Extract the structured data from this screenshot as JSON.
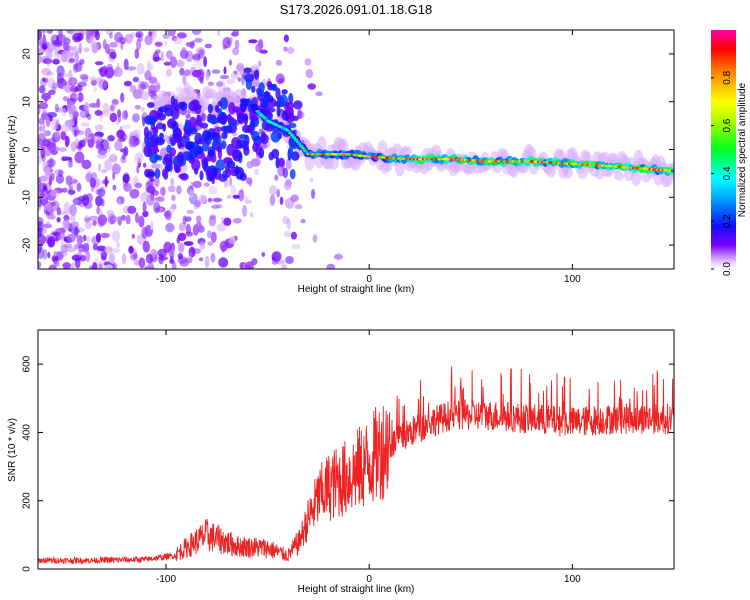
{
  "title": "S173.2026.091.01.18.G18",
  "chart_data": [
    {
      "type": "heatmap",
      "title": "S173.2026.091.01.18.G18",
      "xlabel": "Height of straight line (km)",
      "ylabel": "Frequency (Hz)",
      "xlim": [
        -163,
        150
      ],
      "ylim": [
        -25,
        25
      ],
      "xticks": [
        -100,
        0,
        100
      ],
      "xtick_labels": [
        "-100",
        "0",
        "100"
      ],
      "yticks": [
        -20,
        -10,
        0,
        10,
        20
      ],
      "ytick_labels": [
        "-20",
        "-10",
        "0",
        "10",
        "20"
      ],
      "colorbar": {
        "label": "Normalized spectral amplitude",
        "range": [
          0,
          1
        ],
        "ticks": [
          0,
          0.2,
          0.4,
          0.6,
          0.8
        ],
        "tick_labels": [
          "0.0",
          "0.2",
          "0.4",
          "0.6",
          "0.8"
        ]
      },
      "ridge": {
        "height_km": [
          -60,
          -50,
          -40,
          -30,
          -20,
          -10,
          0,
          20,
          40,
          60,
          80,
          100,
          120,
          150
        ],
        "frequency_hz": [
          10,
          6,
          4,
          -1,
          -1,
          -1,
          -1.5,
          -2,
          -2,
          -2.5,
          -2.5,
          -3,
          -3.5,
          -4.5
        ]
      }
    },
    {
      "type": "line",
      "xlabel": "Height of straight line (km)",
      "ylabel": "SNR (10 * v/v)",
      "xlim": [
        -163,
        150
      ],
      "ylim": [
        0,
        700
      ],
      "xticks": [
        -100,
        0,
        100
      ],
      "xtick_labels": [
        "-100",
        "0",
        "100"
      ],
      "yticks": [
        0,
        200,
        400,
        600
      ],
      "ytick_labels": [
        "0",
        "200",
        "400",
        "600"
      ],
      "color": "#ee2222",
      "series": [
        {
          "name": "SNR",
          "x": [
            -163,
            -140,
            -110,
            -95,
            -80,
            -65,
            -50,
            -40,
            -35,
            -30,
            -25,
            -20,
            -10,
            0,
            10,
            20,
            30,
            40,
            60,
            80,
            100,
            120,
            150
          ],
          "y": [
            25,
            25,
            28,
            40,
            90,
            60,
            55,
            35,
            70,
            140,
            200,
            230,
            260,
            300,
            360,
            400,
            430,
            450,
            450,
            440,
            430,
            440,
            440
          ]
        }
      ]
    }
  ]
}
